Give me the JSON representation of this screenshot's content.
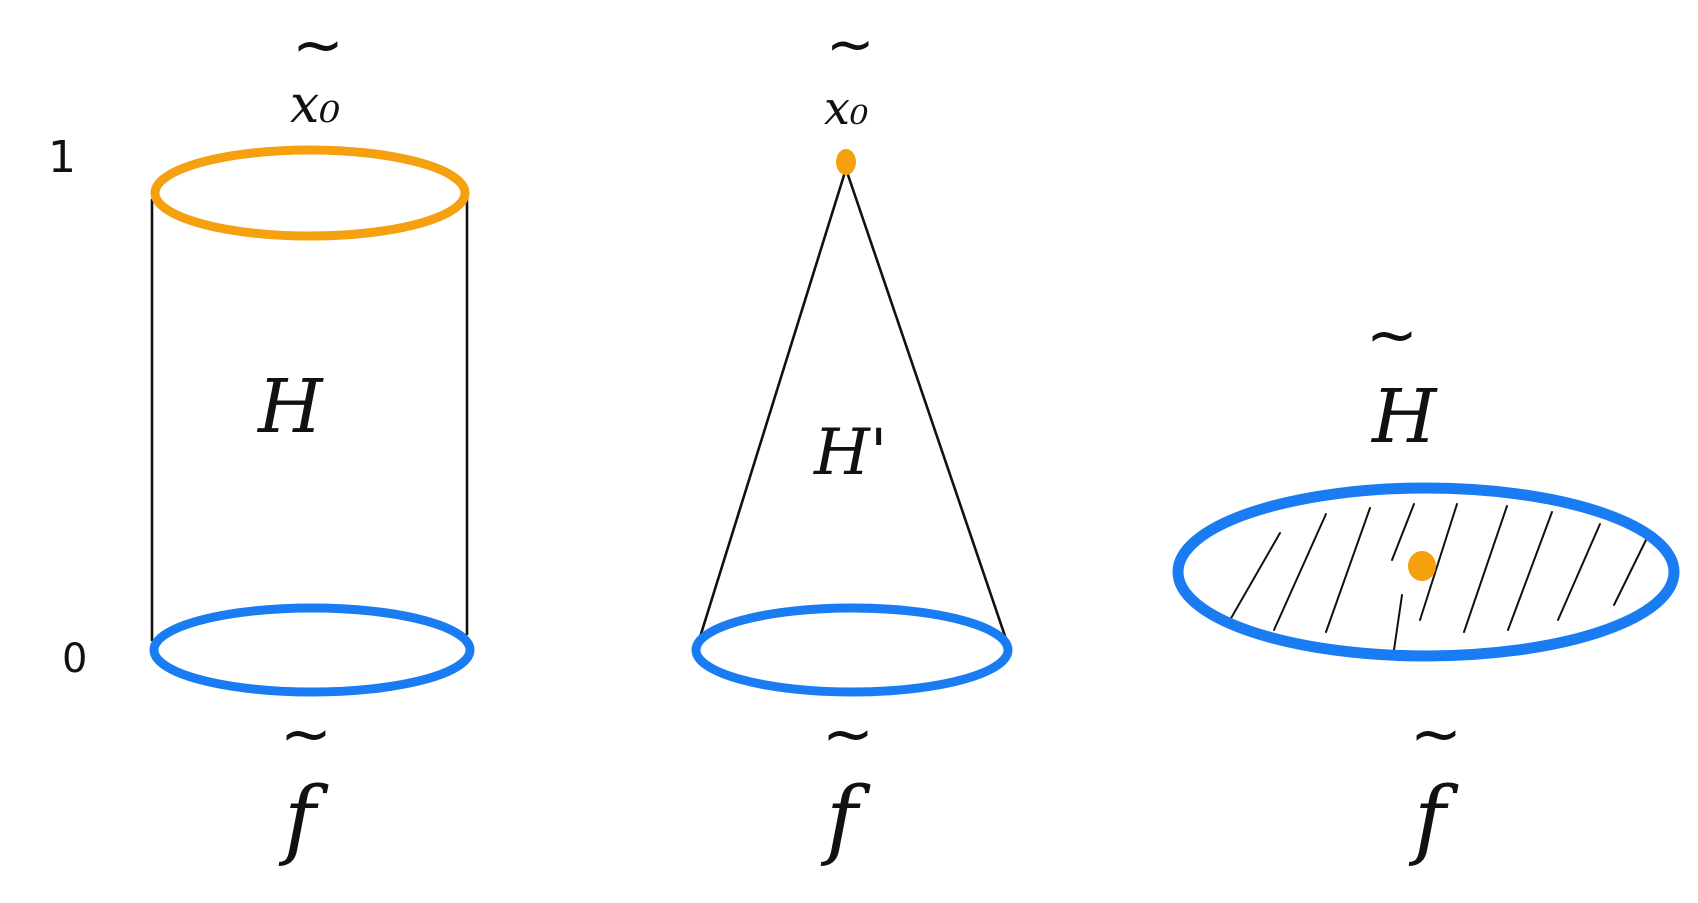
{
  "colors": {
    "ink": "#111111",
    "blue": "#1a7cf2",
    "orange": "#f5a00f"
  },
  "axis": {
    "top_label": "1",
    "bottom_label": "0"
  },
  "figures": [
    {
      "id": "cylinder",
      "top_label_tilde": "~",
      "top_label": "x₀",
      "interior_label": "H",
      "bottom_label_tilde": "~",
      "bottom_label": "f"
    },
    {
      "id": "cone",
      "top_label_tilde": "~",
      "top_label": "x₀",
      "interior_label": "H'",
      "bottom_label_tilde": "~",
      "bottom_label": "f"
    },
    {
      "id": "disk",
      "above_label_tilde": "~",
      "above_label": "H",
      "bottom_label_tilde": "~",
      "bottom_label": "f"
    }
  ]
}
